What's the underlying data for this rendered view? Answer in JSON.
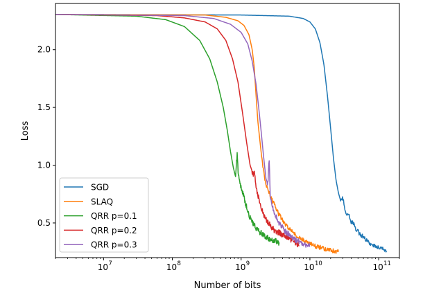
{
  "chart_data": {
    "type": "line",
    "title": "",
    "xlabel": "Number of bits",
    "ylabel": "Loss",
    "xscale": "log",
    "xlim": [
      2000000,
      200000000000
    ],
    "ylim": [
      0.2,
      2.4
    ],
    "x_major_ticks": [
      {
        "value": 10000000,
        "base": "10",
        "exp": "7"
      },
      {
        "value": 100000000,
        "base": "10",
        "exp": "8"
      },
      {
        "value": 1000000000,
        "base": "10",
        "exp": "9"
      },
      {
        "value": 10000000000,
        "base": "10",
        "exp": "10"
      },
      {
        "value": 100000000000,
        "base": "10",
        "exp": "11"
      }
    ],
    "y_ticks": [
      {
        "value": 0.5,
        "label": "0.5"
      },
      {
        "value": 1.0,
        "label": "1.0"
      },
      {
        "value": 1.5,
        "label": "1.5"
      },
      {
        "value": 2.0,
        "label": "2.0"
      }
    ],
    "grid": false,
    "legend_position": "lower-left",
    "series": [
      {
        "name": "SGD",
        "color": "#1f77b4",
        "points": [
          [
            2000000,
            2.305
          ],
          [
            1000000000,
            2.3
          ],
          [
            5000000000,
            2.29
          ],
          [
            8000000000,
            2.27
          ],
          [
            10000000000,
            2.24
          ],
          [
            12000000000,
            2.18
          ],
          [
            14000000000,
            2.06
          ],
          [
            16000000000,
            1.87
          ],
          [
            18000000000,
            1.6
          ],
          [
            20000000000,
            1.32
          ],
          [
            22000000000,
            1.06
          ],
          [
            24000000000,
            0.87
          ],
          [
            26000000000,
            0.76
          ],
          [
            28000000000,
            0.69
          ],
          [
            30000000000,
            0.72
          ],
          [
            33000000000,
            0.6
          ],
          [
            37000000000,
            0.56
          ],
          [
            40000000000,
            0.5
          ],
          [
            42000000000,
            0.52
          ],
          [
            47000000000,
            0.44
          ],
          [
            55000000000,
            0.4
          ],
          [
            65000000000,
            0.35
          ],
          [
            80000000000,
            0.31
          ],
          [
            100000000000,
            0.29
          ],
          [
            130000000000,
            0.26
          ]
        ],
        "noise": 0.02,
        "noise_from": 28000000000
      },
      {
        "name": "SLAQ",
        "color": "#ff7f0e",
        "points": [
          [
            2000000,
            2.305
          ],
          [
            300000000,
            2.3
          ],
          [
            600000000,
            2.28
          ],
          [
            900000000,
            2.25
          ],
          [
            1100000000,
            2.21
          ],
          [
            1300000000,
            2.13
          ],
          [
            1450000000,
            2.0
          ],
          [
            1550000000,
            1.85
          ],
          [
            1650000000,
            1.6
          ],
          [
            1750000000,
            1.38
          ],
          [
            1900000000,
            1.18
          ],
          [
            2050000000,
            1.0
          ],
          [
            2200000000,
            0.88
          ],
          [
            2400000000,
            0.8
          ],
          [
            2700000000,
            0.72
          ],
          [
            3100000000,
            0.65
          ],
          [
            3500000000,
            0.58
          ],
          [
            4000000000,
            0.52
          ],
          [
            5000000000,
            0.45
          ],
          [
            6500000000,
            0.39
          ],
          [
            8500000000,
            0.34
          ],
          [
            12000000000,
            0.3
          ],
          [
            18000000000,
            0.27
          ],
          [
            26000000000,
            0.25
          ]
        ],
        "noise": 0.02,
        "noise_from": 2000000000
      },
      {
        "name": "QRR p=0.1",
        "color": "#2ca02c",
        "points": [
          [
            2000000,
            2.305
          ],
          [
            30000000,
            2.29
          ],
          [
            80000000,
            2.26
          ],
          [
            150000000,
            2.2
          ],
          [
            250000000,
            2.08
          ],
          [
            350000000,
            1.92
          ],
          [
            450000000,
            1.72
          ],
          [
            550000000,
            1.5
          ],
          [
            630000000,
            1.3
          ],
          [
            700000000,
            1.12
          ],
          [
            770000000,
            0.98
          ],
          [
            830000000,
            0.9
          ],
          [
            880000000,
            1.12
          ],
          [
            900000000,
            0.96
          ],
          [
            1000000000,
            0.8
          ],
          [
            1100000000,
            0.72
          ],
          [
            1250000000,
            0.6
          ],
          [
            1400000000,
            0.52
          ],
          [
            1700000000,
            0.44
          ],
          [
            2100000000,
            0.4
          ],
          [
            2600000000,
            0.36
          ],
          [
            3600000000,
            0.33
          ]
        ],
        "noise": 0.025,
        "noise_from": 850000000
      },
      {
        "name": "QRR p=0.2",
        "color": "#d62728",
        "points": [
          [
            2000000,
            2.305
          ],
          [
            60000000,
            2.295
          ],
          [
            150000000,
            2.275
          ],
          [
            300000000,
            2.24
          ],
          [
            450000000,
            2.18
          ],
          [
            600000000,
            2.08
          ],
          [
            750000000,
            1.92
          ],
          [
            900000000,
            1.72
          ],
          [
            1050000000,
            1.45
          ],
          [
            1200000000,
            1.2
          ],
          [
            1350000000,
            1.0
          ],
          [
            1500000000,
            0.92
          ],
          [
            1550000000,
            0.96
          ],
          [
            1650000000,
            0.82
          ],
          [
            1850000000,
            0.68
          ],
          [
            2100000000,
            0.58
          ],
          [
            2500000000,
            0.5
          ],
          [
            3000000000,
            0.44
          ],
          [
            4000000000,
            0.4
          ],
          [
            5500000000,
            0.35
          ],
          [
            7000000000,
            0.3
          ]
        ],
        "noise": 0.025,
        "noise_from": 1450000000
      },
      {
        "name": "QRR p=0.3",
        "color": "#9467bd",
        "points": [
          [
            2000000,
            2.305
          ],
          [
            150000000,
            2.295
          ],
          [
            400000000,
            2.27
          ],
          [
            700000000,
            2.22
          ],
          [
            1000000000,
            2.15
          ],
          [
            1250000000,
            2.05
          ],
          [
            1450000000,
            1.9
          ],
          [
            1650000000,
            1.7
          ],
          [
            1800000000,
            1.5
          ],
          [
            1950000000,
            1.3
          ],
          [
            2100000000,
            1.1
          ],
          [
            2300000000,
            0.88
          ],
          [
            2450000000,
            0.84
          ],
          [
            2550000000,
            1.08
          ],
          [
            2650000000,
            0.74
          ],
          [
            3000000000,
            0.6
          ],
          [
            3500000000,
            0.5
          ],
          [
            4500000000,
            0.42
          ],
          [
            6000000000,
            0.36
          ],
          [
            8000000000,
            0.32
          ],
          [
            10000000000,
            0.3
          ]
        ],
        "noise": 0.025,
        "noise_from": 2400000000
      }
    ]
  }
}
